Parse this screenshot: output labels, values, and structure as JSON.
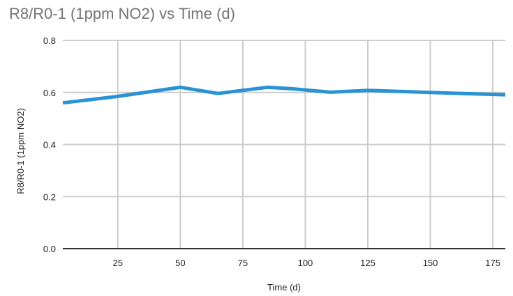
{
  "chart_data": {
    "type": "line",
    "title": "R8/R0-1 (1ppm NO2) vs Time (d)",
    "xlabel": "Time (d)",
    "ylabel": "R8/R0-1 (1ppm NO2)",
    "xlim": [
      3,
      180
    ],
    "ylim": [
      0,
      0.8
    ],
    "x_ticks": [
      25,
      50,
      75,
      100,
      125,
      150,
      175
    ],
    "y_ticks": [
      0.0,
      0.2,
      0.4,
      0.6,
      0.8
    ],
    "y_tick_labels": [
      "0.0",
      "0.2",
      "0.4",
      "0.6",
      "0.8"
    ],
    "grid": true,
    "series": [
      {
        "color": "#2a93d5",
        "x": [
          3,
          25,
          50,
          65,
          85,
          95,
          110,
          125,
          150,
          180
        ],
        "y": [
          0.56,
          0.585,
          0.62,
          0.596,
          0.62,
          0.614,
          0.601,
          0.608,
          0.6,
          0.591
        ]
      }
    ],
    "colors": {
      "grid": "#cccccc",
      "baseline": "#333333",
      "title": "#757575",
      "text": "#222222"
    }
  }
}
